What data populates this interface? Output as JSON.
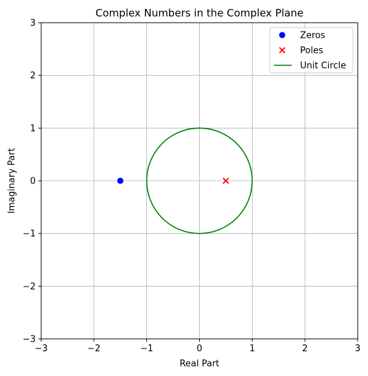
{
  "chart_data": {
    "type": "scatter",
    "title": "Complex Numbers in the Complex Plane",
    "xlabel": "Real Part",
    "ylabel": "Imaginary Part",
    "xlim": [
      -3,
      3
    ],
    "ylim": [
      -3,
      3
    ],
    "x_ticks": [
      -3,
      -2,
      -1,
      0,
      1,
      2,
      3
    ],
    "y_ticks": [
      -3,
      -2,
      -1,
      0,
      1,
      2,
      3
    ],
    "grid": true,
    "legend_position": "top-right",
    "series": [
      {
        "name": "Zeros",
        "kind": "scatter-circle",
        "color": "#0000ff",
        "points": [
          [
            -1.5,
            0
          ]
        ]
      },
      {
        "name": "Poles",
        "kind": "scatter-x",
        "color": "#ff0000",
        "points": [
          [
            0.5,
            0
          ]
        ]
      },
      {
        "name": "Unit Circle",
        "kind": "circle-line",
        "color": "#008000",
        "center": [
          0,
          0
        ],
        "radius": 1
      }
    ]
  }
}
